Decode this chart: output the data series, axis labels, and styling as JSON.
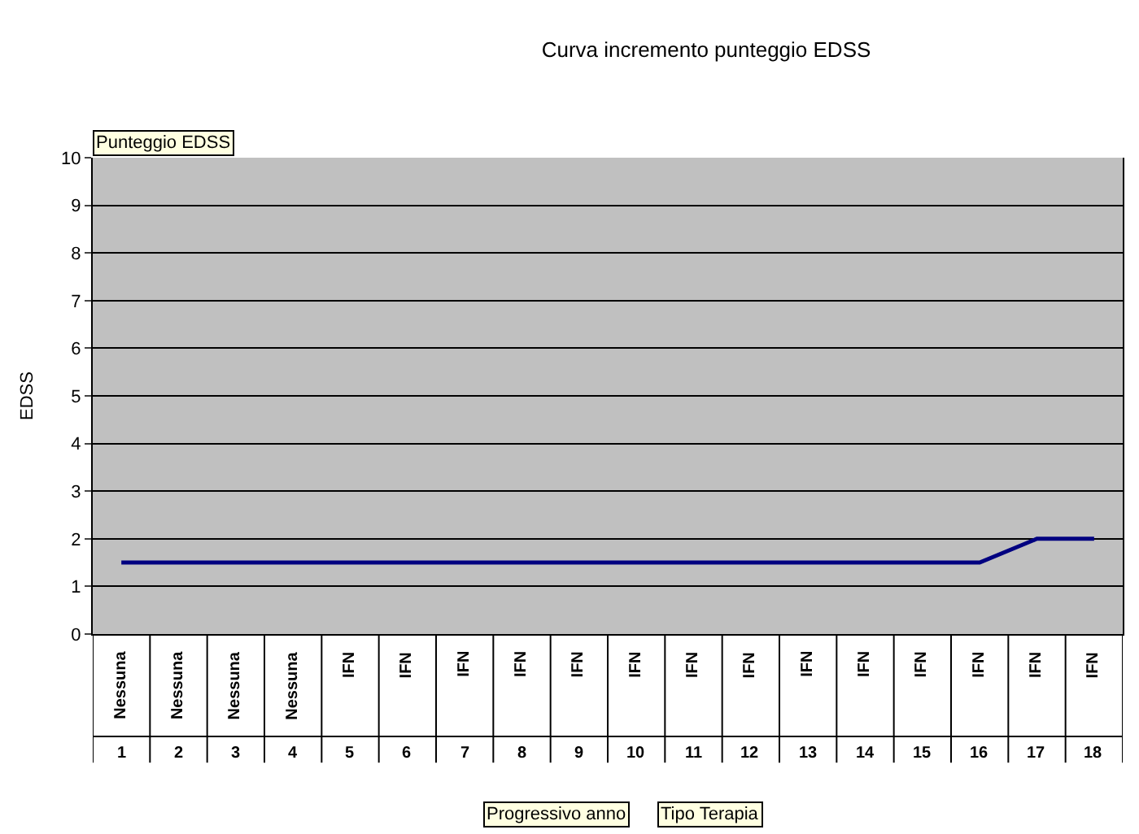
{
  "chart_data": {
    "type": "line",
    "title": "Curva incremento punteggio EDSS",
    "ylabel": "EDSS",
    "categories": [
      "Nessuna\n1",
      "Nessuna\n2",
      "Nessuna\n3",
      "Nessuna\n4",
      "IFN\n5",
      "IFN\n6",
      "IFN\n7",
      "IFN\n8",
      "IFN\n9",
      "IFN\n10",
      "IFN\n11",
      "IFN\n12",
      "IFN\n13",
      "IFN\n14",
      "IFN\n15",
      "IFN\n16",
      "IFN\n17",
      "IFN\n18"
    ],
    "series": [
      {
        "color": "#000080",
        "values": [
          1.5,
          1.5,
          1.5,
          1.5,
          1.5,
          1.5,
          1.5,
          1.5,
          1.5,
          1.5,
          1.5,
          1.5,
          1.5,
          1.5,
          1.5,
          1.5,
          2,
          2
        ]
      }
    ],
    "ylim": [
      0,
      10
    ],
    "yticks": [
      0,
      1,
      2,
      3,
      4,
      5,
      6,
      7,
      8,
      9,
      10
    ],
    "grid": "y",
    "legend": false,
    "marker": "none",
    "line_style": "solid",
    "annotations": [
      "Punteggio EDSS",
      "Progressivo anno",
      "Tipo Terapia"
    ]
  }
}
